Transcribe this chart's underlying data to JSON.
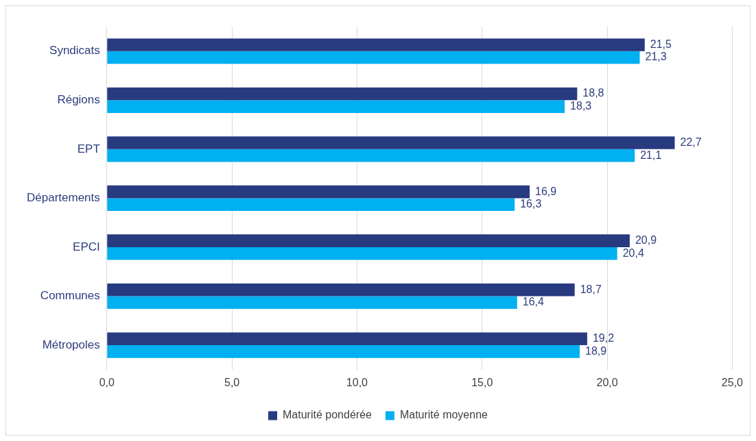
{
  "chart_data": {
    "type": "bar",
    "orientation": "horizontal",
    "categories": [
      "Syndicats",
      "Régions",
      "EPT",
      "Départements",
      "EPCI",
      "Communes",
      "Métropoles"
    ],
    "series": [
      {
        "name": "Maturité pondérée",
        "color": "#283a80",
        "values": [
          21.5,
          18.8,
          22.7,
          16.9,
          20.9,
          18.7,
          19.2
        ],
        "value_labels": [
          "21,5",
          "18,8",
          "22,7",
          "16,9",
          "20,9",
          "18,7",
          "19,2"
        ]
      },
      {
        "name": "Maturité moyenne",
        "color": "#00b0f0",
        "values": [
          21.3,
          18.3,
          21.1,
          16.3,
          20.4,
          16.4,
          18.9
        ],
        "value_labels": [
          "21,3",
          "18,3",
          "21,1",
          "16,3",
          "20,4",
          "16,4",
          "18,9"
        ]
      }
    ],
    "xlim": [
      0,
      25
    ],
    "xticks": [
      {
        "value": 0,
        "label": "0,0"
      },
      {
        "value": 5,
        "label": "5,0"
      },
      {
        "value": 10,
        "label": "10,0"
      },
      {
        "value": 15,
        "label": "15,0"
      },
      {
        "value": 20,
        "label": "20,0"
      },
      {
        "value": 25,
        "label": "25,0"
      }
    ],
    "grid": "x",
    "legend": "bottom"
  }
}
